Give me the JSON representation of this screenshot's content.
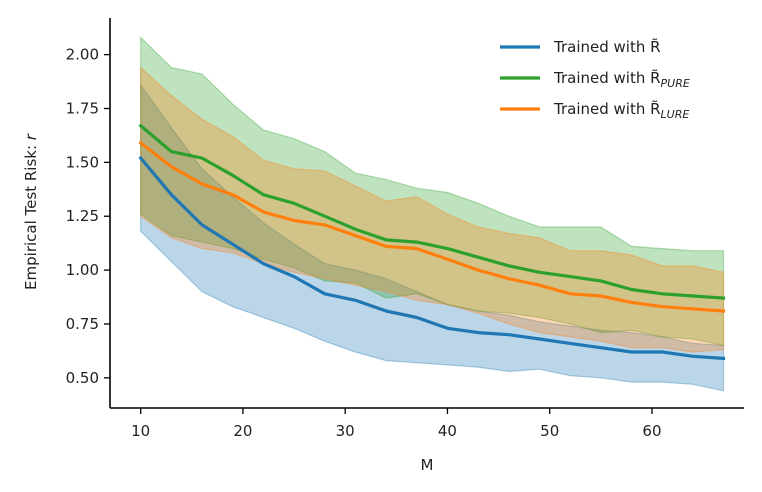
{
  "chart_data": {
    "type": "line",
    "xlabel": "M",
    "ylabel": "Empirical Test Risk: r",
    "ylabel_parts": {
      "text": "Empirical Test Risk: ",
      "var": "r"
    },
    "xlim": [
      7,
      69
    ],
    "ylim": [
      0.36,
      2.17
    ],
    "xticks": [
      10,
      20,
      30,
      40,
      50,
      60
    ],
    "yticks": [
      0.5,
      0.75,
      1.0,
      1.25,
      1.5,
      1.75,
      2.0
    ],
    "ytick_labels": [
      "0.50",
      "0.75",
      "1.00",
      "1.25",
      "1.50",
      "1.75",
      "2.00"
    ],
    "legend_position": "top-right",
    "x": [
      10,
      13,
      16,
      19,
      22,
      25,
      28,
      31,
      34,
      37,
      40,
      43,
      46,
      49,
      52,
      55,
      58,
      61,
      64,
      67
    ],
    "series": [
      {
        "name": "Trained with R̃",
        "legend": {
          "base": "Trained with R̃",
          "sub": ""
        },
        "color": "#1f77b4",
        "values": [
          1.52,
          1.35,
          1.21,
          1.12,
          1.03,
          0.97,
          0.89,
          0.86,
          0.81,
          0.78,
          0.73,
          0.71,
          0.7,
          0.68,
          0.66,
          0.64,
          0.62,
          0.62,
          0.6,
          0.59
        ],
        "upper": [
          1.86,
          1.66,
          1.47,
          1.34,
          1.22,
          1.12,
          1.03,
          1.0,
          0.96,
          0.9,
          0.84,
          0.81,
          0.79,
          0.76,
          0.74,
          0.72,
          0.71,
          0.69,
          0.66,
          0.65
        ],
        "lower": [
          1.18,
          1.04,
          0.9,
          0.83,
          0.78,
          0.73,
          0.67,
          0.62,
          0.58,
          0.57,
          0.56,
          0.55,
          0.53,
          0.54,
          0.51,
          0.5,
          0.48,
          0.48,
          0.47,
          0.44
        ]
      },
      {
        "name": "Trained with R̃PURE",
        "legend": {
          "base": "Trained with R̃",
          "sub": "PURE"
        },
        "color": "#2ca02c",
        "values": [
          1.67,
          1.55,
          1.52,
          1.44,
          1.35,
          1.31,
          1.25,
          1.19,
          1.14,
          1.13,
          1.1,
          1.06,
          1.02,
          0.99,
          0.97,
          0.95,
          0.91,
          0.89,
          0.88,
          0.87
        ],
        "upper": [
          2.08,
          1.94,
          1.91,
          1.77,
          1.65,
          1.61,
          1.55,
          1.45,
          1.42,
          1.38,
          1.36,
          1.31,
          1.25,
          1.2,
          1.2,
          1.2,
          1.11,
          1.1,
          1.09,
          1.09
        ],
        "lower": [
          1.26,
          1.16,
          1.13,
          1.1,
          1.05,
          1.01,
          0.95,
          0.94,
          0.87,
          0.89,
          0.84,
          0.81,
          0.8,
          0.78,
          0.75,
          0.71,
          0.72,
          0.69,
          0.68,
          0.65
        ]
      },
      {
        "name": "Trained with R̃LURE",
        "legend": {
          "base": "Trained with R̃",
          "sub": "LURE"
        },
        "color": "#ff7f0e",
        "values": [
          1.59,
          1.48,
          1.4,
          1.35,
          1.27,
          1.23,
          1.21,
          1.16,
          1.11,
          1.1,
          1.05,
          1.0,
          0.96,
          0.93,
          0.89,
          0.88,
          0.85,
          0.83,
          0.82,
          0.81
        ],
        "upper": [
          1.94,
          1.81,
          1.7,
          1.62,
          1.51,
          1.47,
          1.46,
          1.39,
          1.32,
          1.34,
          1.26,
          1.2,
          1.17,
          1.15,
          1.09,
          1.09,
          1.07,
          1.02,
          1.02,
          0.99
        ],
        "lower": [
          1.25,
          1.15,
          1.1,
          1.08,
          1.03,
          0.99,
          0.96,
          0.93,
          0.9,
          0.86,
          0.84,
          0.8,
          0.75,
          0.71,
          0.69,
          0.67,
          0.64,
          0.64,
          0.62,
          0.63
        ]
      }
    ]
  }
}
